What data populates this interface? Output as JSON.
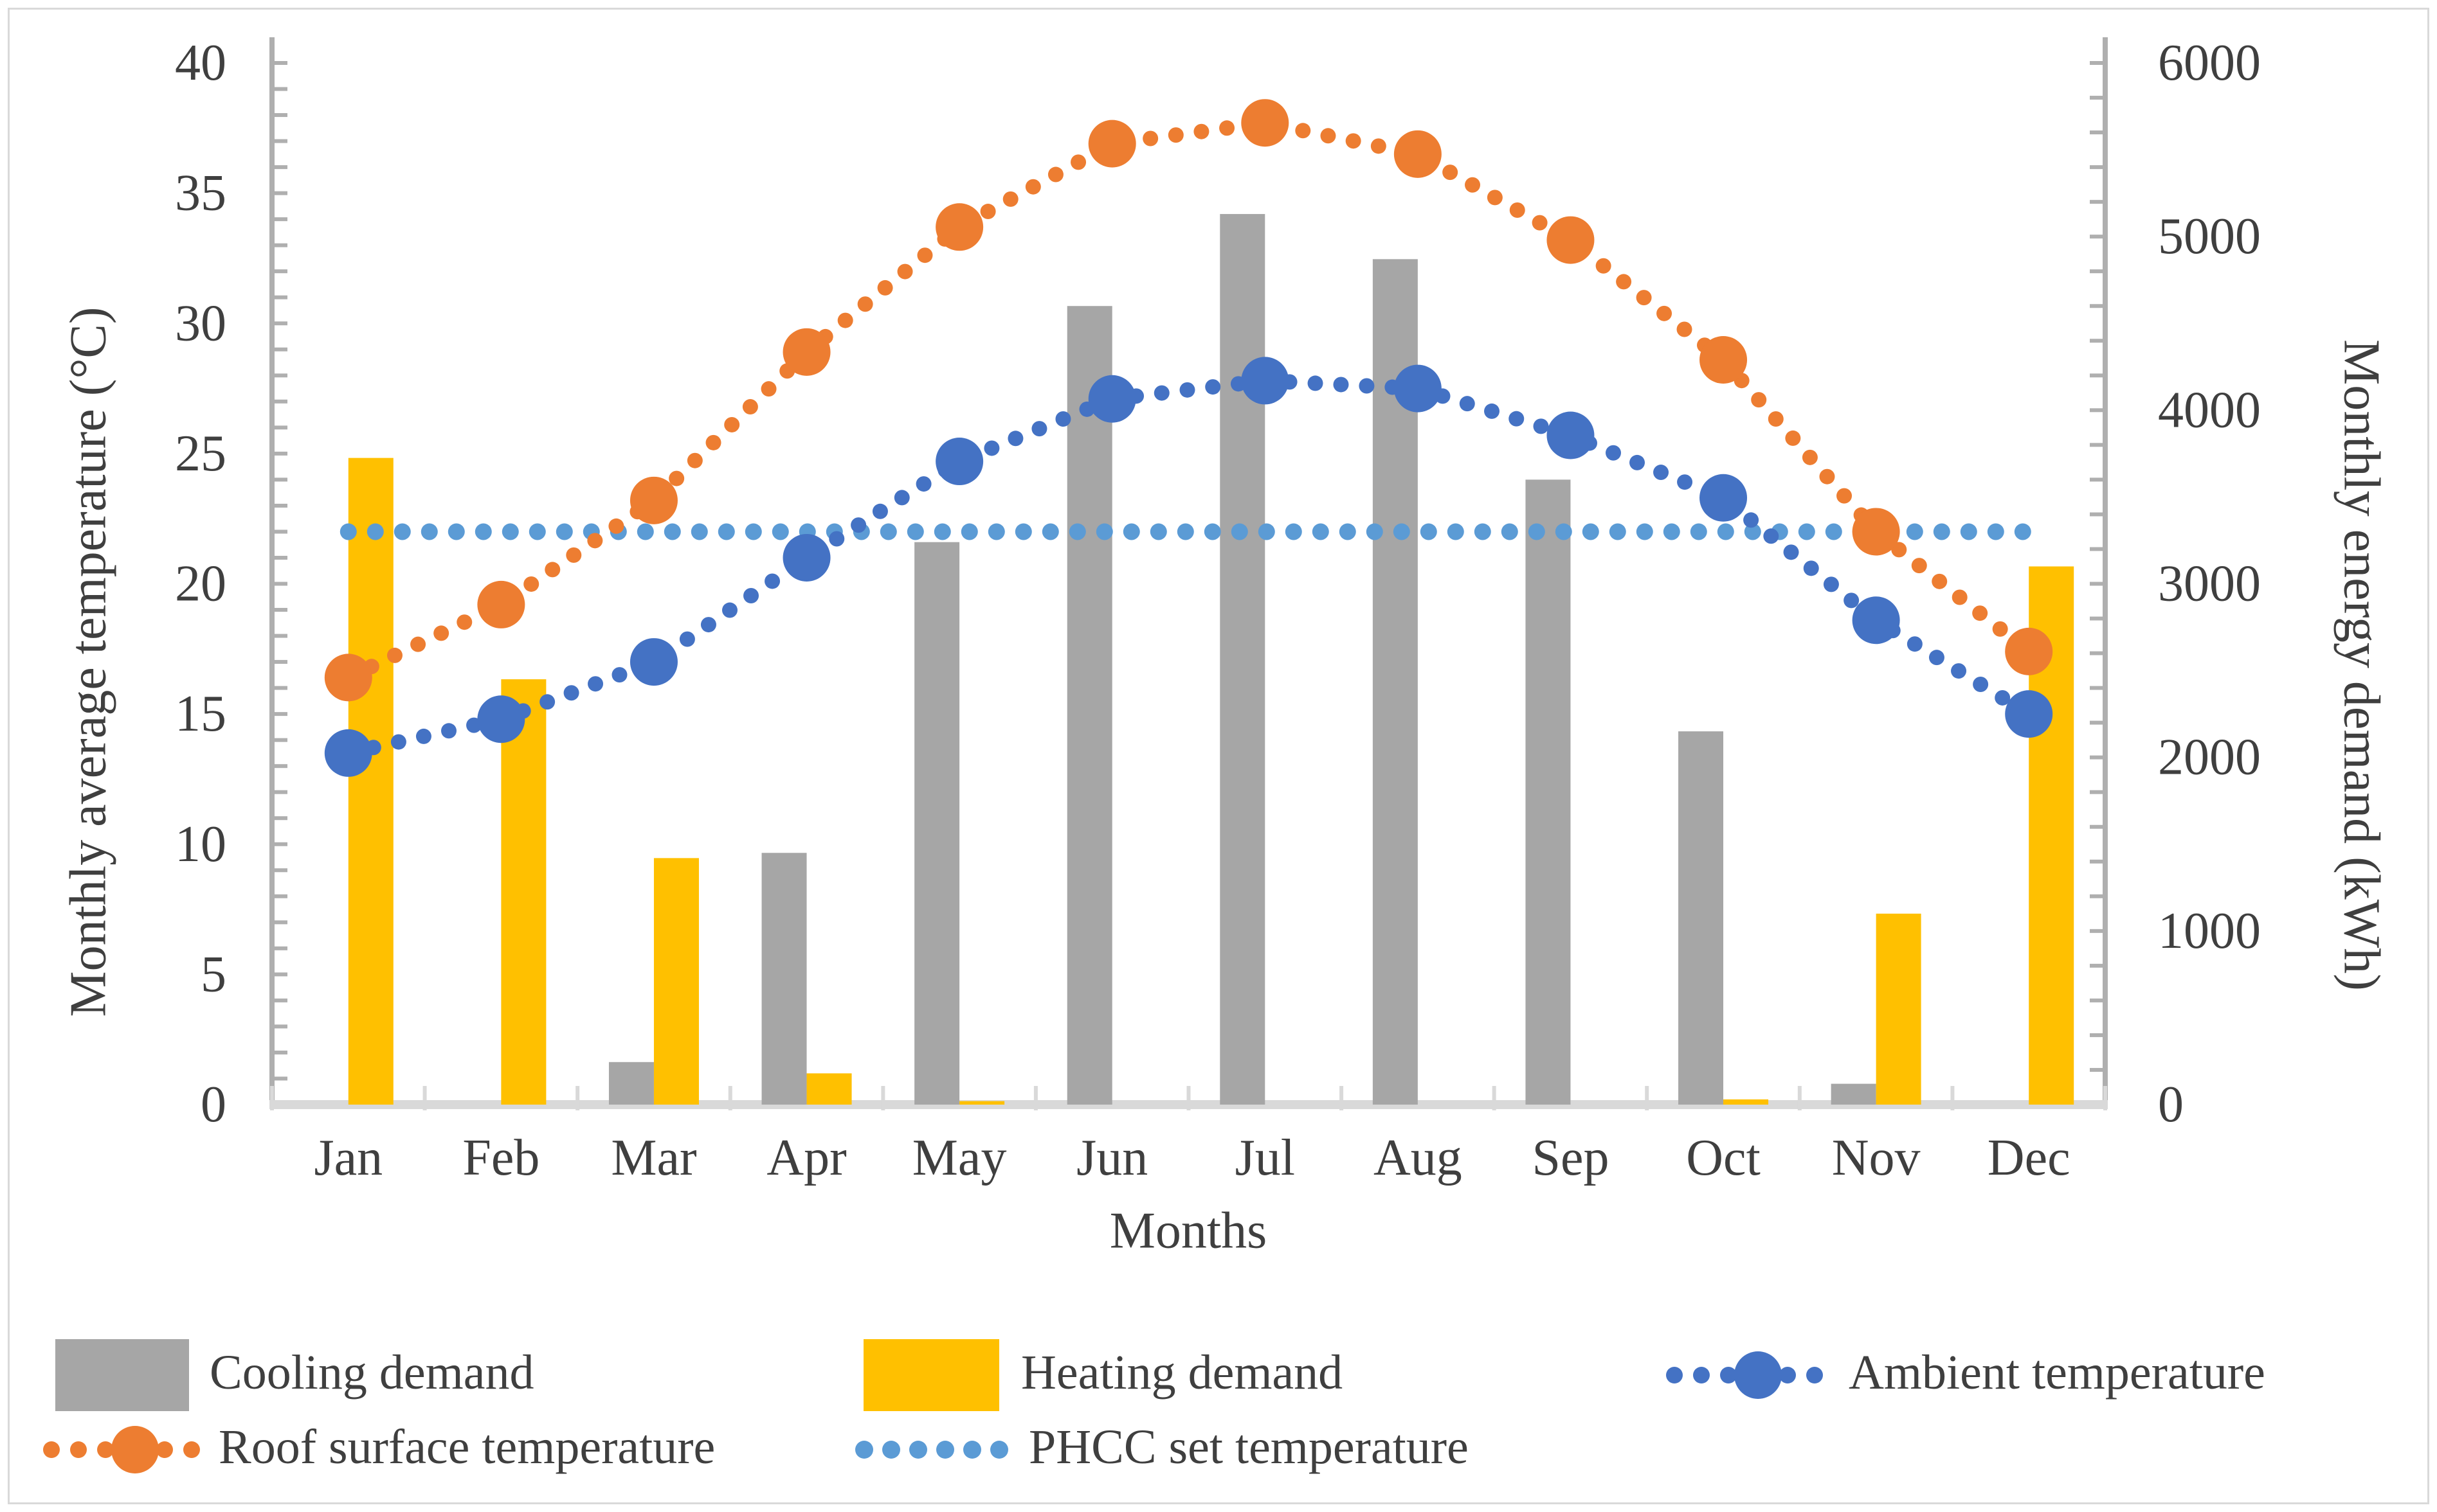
{
  "chart_data": {
    "type": "bar+line combo, dual y-axis",
    "categories": [
      "Jan",
      "Feb",
      "Mar",
      "Apr",
      "May",
      "Jun",
      "Jul",
      "Aug",
      "Sep",
      "Oct",
      "Nov",
      "Dec"
    ],
    "series": [
      {
        "name": "Cooling demand",
        "type": "bar",
        "axis": "right",
        "unit": "kWh",
        "color": "#A6A6A6",
        "values": [
          0,
          0,
          245,
          1450,
          3240,
          4600,
          5130,
          4870,
          3600,
          2150,
          120,
          0
        ]
      },
      {
        "name": "Heating demand",
        "type": "bar",
        "axis": "right",
        "unit": "kWh",
        "color": "#FFC000",
        "values": [
          3725,
          2450,
          1420,
          180,
          20,
          0,
          0,
          0,
          0,
          30,
          1100,
          3100
        ]
      },
      {
        "name": "Ambient temperature",
        "type": "dotted-line-with-markers",
        "axis": "left",
        "unit": "°C",
        "color": "#4472C4",
        "values": [
          13.5,
          14.8,
          17.0,
          21.0,
          24.7,
          27.1,
          27.8,
          27.5,
          25.7,
          23.3,
          18.6,
          15.0
        ]
      },
      {
        "name": "Roof surface temperature",
        "type": "dotted-line-with-markers",
        "axis": "left",
        "unit": "°C",
        "color": "#ED7D31",
        "values": [
          16.4,
          19.2,
          23.2,
          28.9,
          33.7,
          36.9,
          37.7,
          36.5,
          33.2,
          28.6,
          22.0,
          17.4
        ]
      },
      {
        "name": "PHCC set temperature",
        "type": "dotted-line",
        "axis": "left",
        "unit": "°C",
        "color": "#5B9BD5",
        "values": [
          22,
          22,
          22,
          22,
          22,
          22,
          22,
          22,
          22,
          22,
          22,
          22
        ]
      }
    ],
    "xlabel": "Months",
    "ylabel_left": "Monthly average temperature (°C)",
    "ylabel_right": "Monthly energy demand (kWh)",
    "y_left": {
      "min": 0,
      "max": 40,
      "major_tick": 5,
      "minor_tick": 1
    },
    "y_right": {
      "min": 0,
      "max": 6000,
      "major_tick": 1000,
      "minor_tick": 200
    },
    "grid": false,
    "legend_position": "bottom, two rows",
    "axis_colors": {
      "y_axis_line": "#AFAFAF",
      "x_axis_line": "#D9D9D9",
      "text": "#3F3F3F"
    }
  }
}
